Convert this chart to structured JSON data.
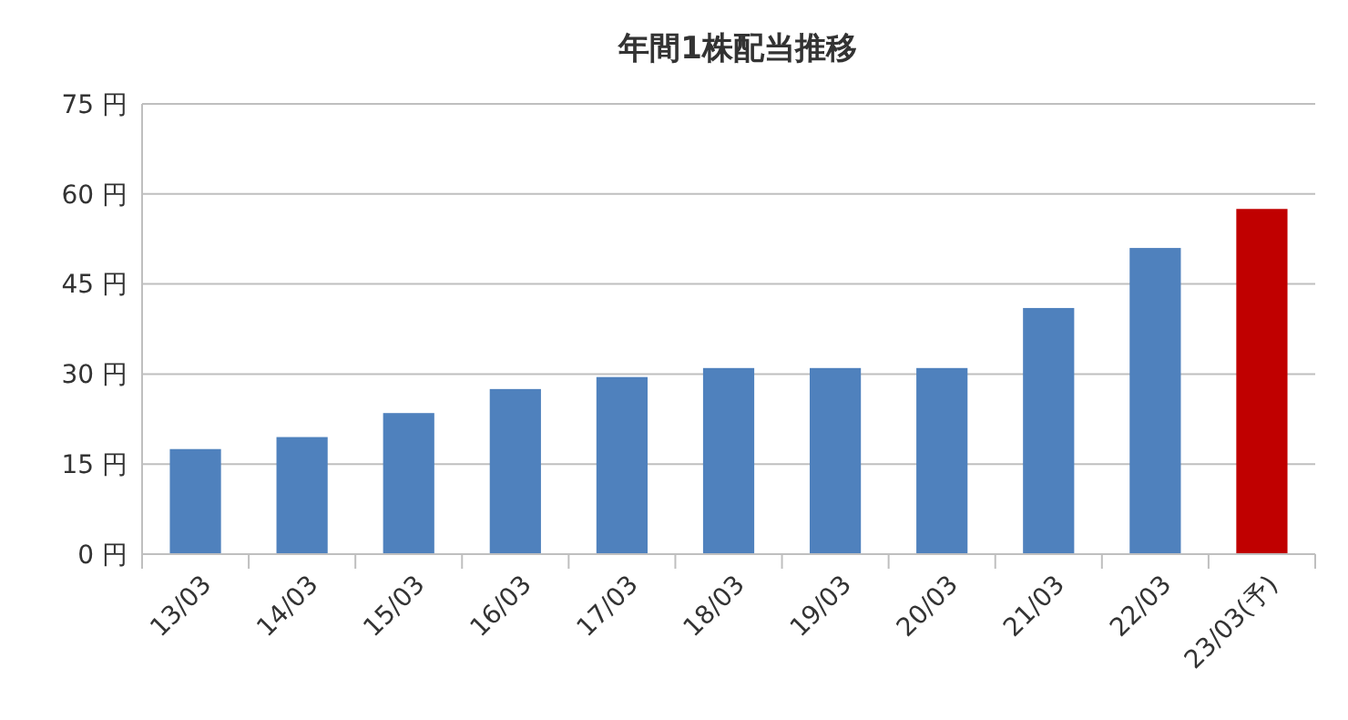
{
  "chart_data": {
    "type": "bar",
    "title": "年間1株配当推移",
    "categories": [
      "13/03",
      "14/03",
      "15/03",
      "16/03",
      "17/03",
      "18/03",
      "19/03",
      "20/03",
      "21/03",
      "22/03",
      "23/03(予)"
    ],
    "values": [
      17.5,
      19.5,
      23.5,
      27.5,
      29.5,
      31,
      31,
      31,
      41,
      51,
      57.5
    ],
    "colors": [
      "#4f81bd",
      "#4f81bd",
      "#4f81bd",
      "#4f81bd",
      "#4f81bd",
      "#4f81bd",
      "#4f81bd",
      "#4f81bd",
      "#4f81bd",
      "#4f81bd",
      "#c00000"
    ],
    "ylim": [
      0,
      75
    ],
    "yticks": [
      {
        "value": 0,
        "label": "0 円"
      },
      {
        "value": 15,
        "label": "15 円"
      },
      {
        "value": 30,
        "label": "30 円"
      },
      {
        "value": 45,
        "label": "45 円"
      },
      {
        "value": 60,
        "label": "60 円"
      },
      {
        "value": 75,
        "label": "75 円"
      }
    ],
    "grid": "y"
  }
}
